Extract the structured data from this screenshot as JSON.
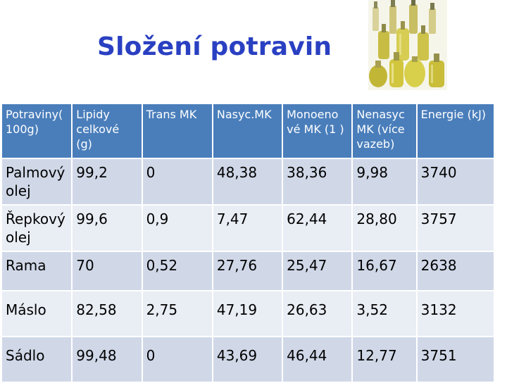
{
  "title": "Složení potravin",
  "table": {
    "headers": [
      "Potraviny( 100g)",
      "Lipidy celkové (g)",
      "Trans MK",
      "Nasyc.MK",
      "Monoeno vé MK (1 )",
      "Nenasyc MK (více vazeb)",
      "Energie (kJ)"
    ],
    "rows": [
      [
        "Palmový olej",
        "99,2",
        "0",
        "48,38",
        "38,36",
        "9,98",
        "3740"
      ],
      [
        "Řepkový olej",
        "99,6",
        "0,9",
        "7,47",
        "62,44",
        "28,80",
        "3757"
      ],
      [
        "Rama",
        "70",
        "0,52",
        "27,76",
        "25,47",
        "16,67",
        "2638"
      ],
      [
        "Máslo",
        "82,58",
        "2,75",
        "47,19",
        "26,63",
        "3,52",
        "3132"
      ],
      [
        "Sádlo",
        "99,48",
        "0",
        "43,69",
        "46,44",
        "12,77",
        "3751"
      ]
    ]
  },
  "colors": {
    "title": "#2a40c2",
    "header_bg": "#4a7ebb",
    "row_dark": "#d0d8e8",
    "row_light": "#e9edf4"
  },
  "image": {
    "icon": "oil-bottles-photo"
  }
}
